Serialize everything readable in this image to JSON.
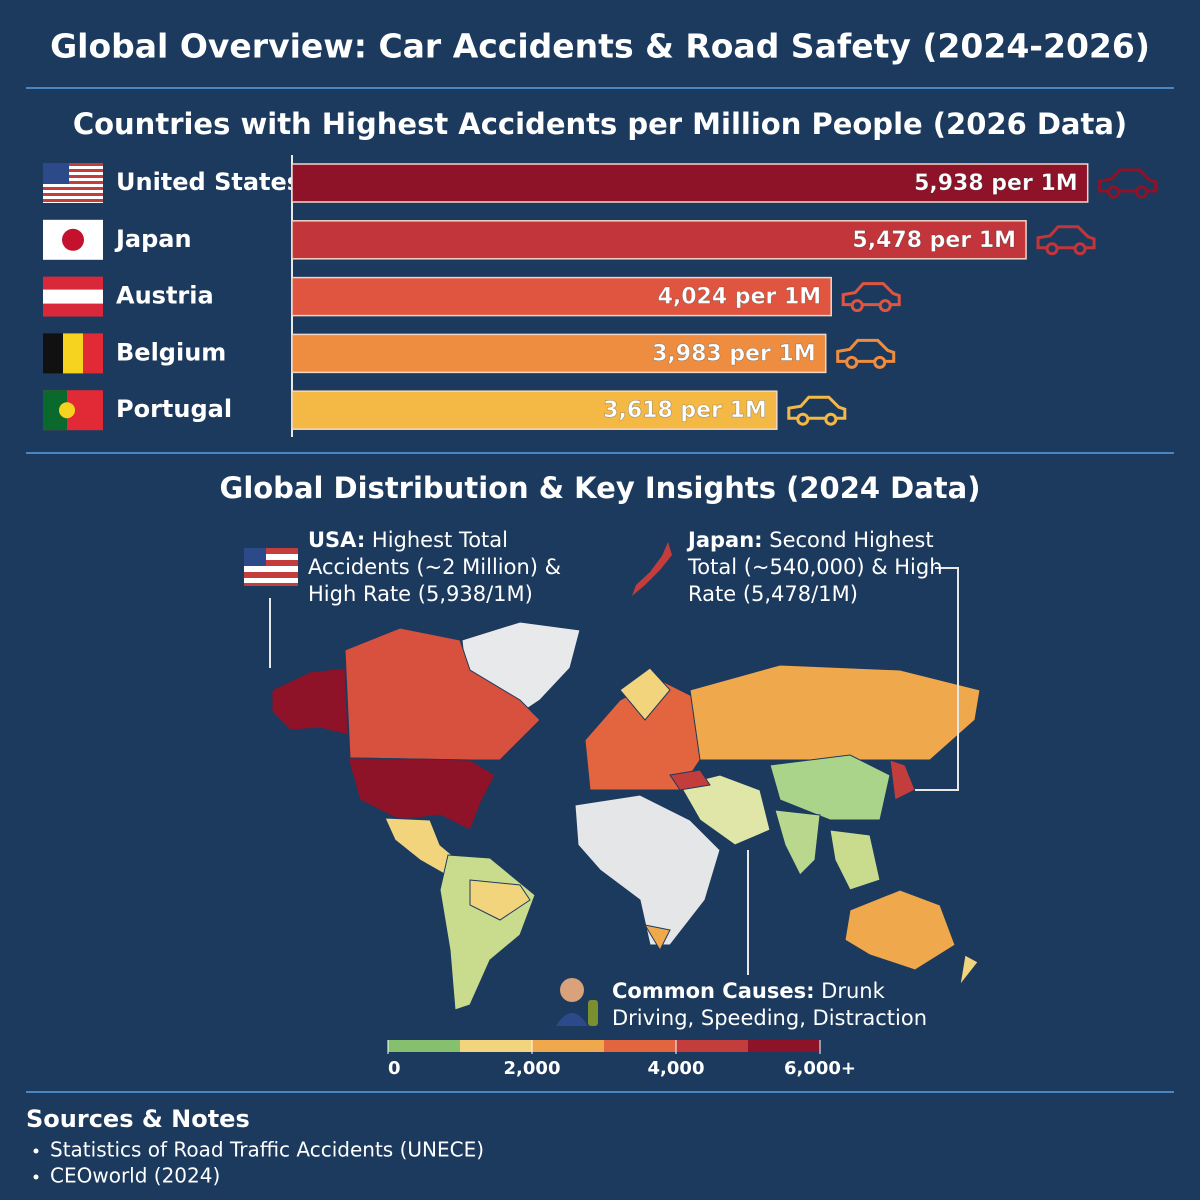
{
  "title": "Global Overview: Car Accidents & Road Safety (2024-2026)",
  "chart_data": {
    "type": "hbar",
    "title": "Countries with Highest Accidents per Million People (2026 Data)",
    "categories": [
      "United States",
      "Japan",
      "Austria",
      "Belgium",
      "Portugal"
    ],
    "values": [
      5938,
      5478,
      4024,
      3983,
      3618
    ],
    "value_labels": [
      "5,938 per 1M",
      "5,478 per 1M",
      "4,024 per 1M",
      "3,983 per 1M",
      "3,618 per 1M"
    ],
    "colors": [
      "#8e1228",
      "#c2353b",
      "#e0553f",
      "#ee8d3f",
      "#f4b845"
    ]
  },
  "map_section": {
    "title": "Global Distribution & Key Insights (2024 Data)",
    "annotations": [
      {
        "label": "USA:",
        "lines": [
          "Highest Total",
          "Accidents (~2 Million) &",
          "High Rate (5,938/1M)"
        ]
      },
      {
        "label": "Japan:",
        "lines": [
          "Second Highest",
          "Total (~540,000) & High",
          "Rate (5,478/1M)"
        ]
      },
      {
        "label": "Common Causes:",
        "lines": [
          "Drunk",
          "Driving, Speeding, Distraction"
        ]
      }
    ],
    "legend": {
      "colors": [
        "#86c06e",
        "#f2d47c",
        "#f0a84c",
        "#e2653f",
        "#c43d3d",
        "#8e1228"
      ],
      "ticks": [
        0,
        {
          "value": 2000,
          "label": "2,000"
        },
        {
          "value": 4000,
          "label": "4,000"
        },
        {
          "value": 6000,
          "label": "6,000+"
        }
      ]
    }
  },
  "sources": {
    "title": "Sources & Notes",
    "items": [
      "Statistics of Road Traffic Accidents (UNECE)",
      "CEOworld (2024)"
    ]
  }
}
